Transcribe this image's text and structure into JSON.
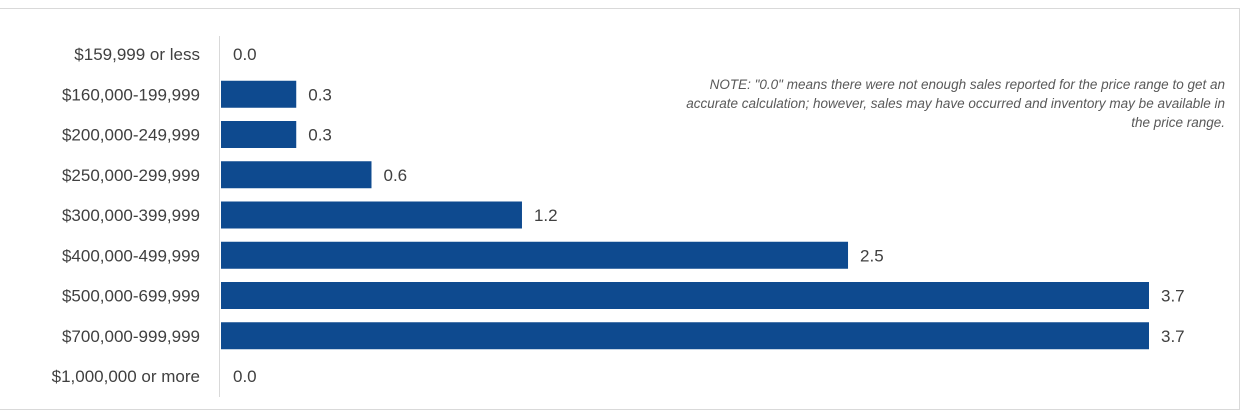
{
  "chart_data": {
    "type": "bar",
    "orientation": "horizontal",
    "categories": [
      "$159,999 or less",
      "$160,000-199,999",
      "$200,000-249,999",
      "$250,000-299,999",
      "$300,000-399,999",
      "$400,000-499,999",
      "$500,000-699,999",
      "$700,000-999,999",
      "$1,000,000 or more"
    ],
    "values": [
      0.0,
      0.3,
      0.3,
      0.6,
      1.2,
      2.5,
      3.7,
      3.7,
      0.0
    ],
    "value_labels": [
      "0.0",
      "0.3",
      "0.3",
      "0.6",
      "1.2",
      "2.5",
      "3.7",
      "3.7",
      "0.0"
    ],
    "xlim": [
      0,
      3.7
    ],
    "grid": false,
    "legend": "none",
    "annotation": "NOTE: \"0.0\" means there were not enough sales reported for the price range to get an accurate calculation;  however, sales may have occurred and inventory may be available in the price range.",
    "colors": {
      "bar": "#0e4a8f",
      "axis": "#d9d9d9",
      "text": "#404040",
      "note": "#595959"
    }
  }
}
